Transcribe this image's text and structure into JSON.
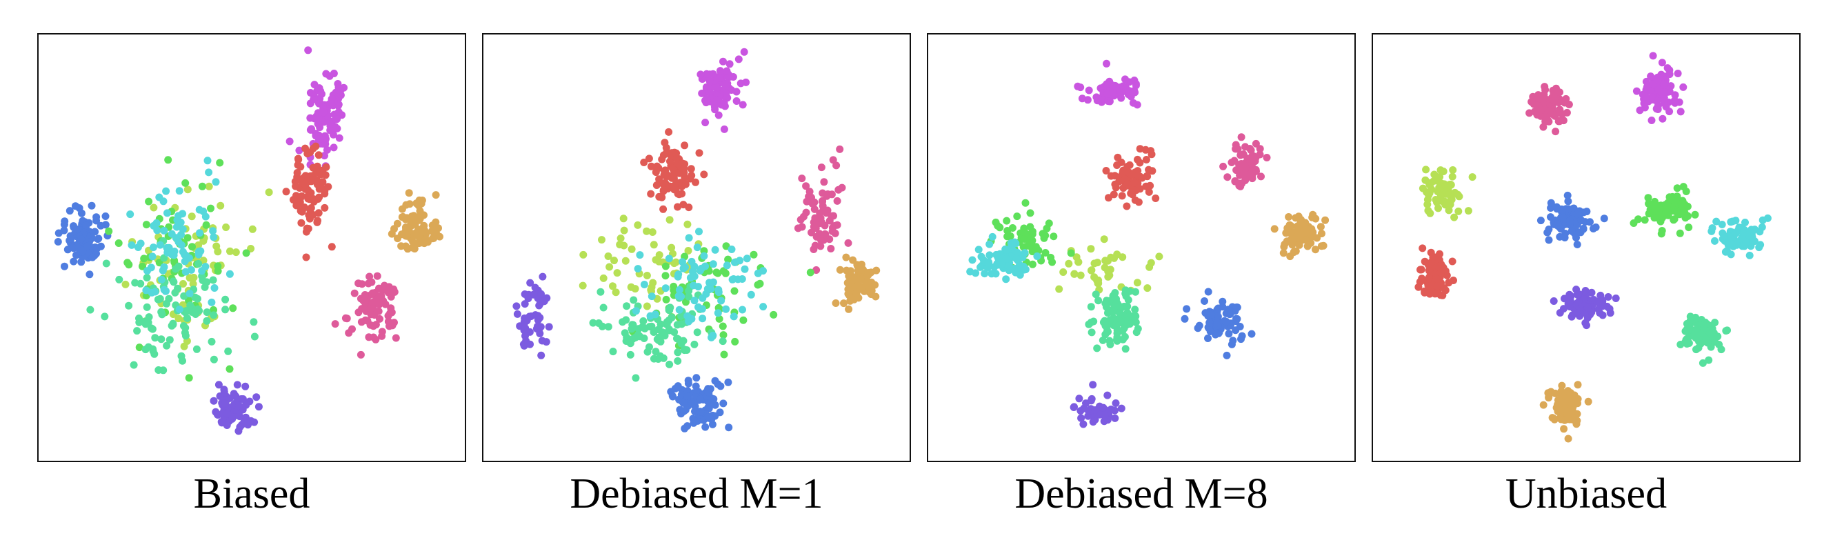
{
  "colors": [
    "#4f7de0",
    "#7c5be0",
    "#c955e0",
    "#de5a9a",
    "#e05a55",
    "#dba856",
    "#b6e055",
    "#5ee05a",
    "#56e09d",
    "#55d8db"
  ],
  "chart_data": [
    {
      "type": "scatter",
      "title": "Biased",
      "clusters": [
        {
          "color": 0,
          "center": [
            0.09,
            0.47
          ],
          "spread": [
            0.05,
            0.07
          ],
          "n": 90
        },
        {
          "color": 1,
          "center": [
            0.46,
            0.89
          ],
          "spread": [
            0.04,
            0.05
          ],
          "n": 70
        },
        {
          "color": 2,
          "center": [
            0.68,
            0.17
          ],
          "spread": [
            0.04,
            0.09
          ],
          "n": 90
        },
        {
          "color": 3,
          "center": [
            0.79,
            0.64
          ],
          "spread": [
            0.05,
            0.07
          ],
          "n": 80
        },
        {
          "color": 4,
          "center": [
            0.64,
            0.36
          ],
          "spread": [
            0.04,
            0.09
          ],
          "n": 90
        },
        {
          "color": 5,
          "center": [
            0.9,
            0.45
          ],
          "spread": [
            0.05,
            0.06
          ],
          "n": 80
        },
        {
          "color": 6,
          "center": [
            0.35,
            0.55
          ],
          "spread": [
            0.13,
            0.18
          ],
          "n": 70
        },
        {
          "color": 7,
          "center": [
            0.3,
            0.52
          ],
          "spread": [
            0.12,
            0.17
          ],
          "n": 60
        },
        {
          "color": 8,
          "center": [
            0.3,
            0.66
          ],
          "spread": [
            0.12,
            0.11
          ],
          "n": 90
        },
        {
          "color": 9,
          "center": [
            0.32,
            0.48
          ],
          "spread": [
            0.1,
            0.14
          ],
          "n": 70
        }
      ]
    },
    {
      "type": "scatter",
      "title": "Debiased M=1",
      "clusters": [
        {
          "color": 0,
          "center": [
            0.51,
            0.88
          ],
          "spread": [
            0.05,
            0.06
          ],
          "n": 90
        },
        {
          "color": 1,
          "center": [
            0.11,
            0.67
          ],
          "spread": [
            0.03,
            0.08
          ],
          "n": 50
        },
        {
          "color": 2,
          "center": [
            0.56,
            0.12
          ],
          "spread": [
            0.05,
            0.06
          ],
          "n": 80
        },
        {
          "color": 3,
          "center": [
            0.8,
            0.43
          ],
          "spread": [
            0.04,
            0.12
          ],
          "n": 70
        },
        {
          "color": 4,
          "center": [
            0.44,
            0.32
          ],
          "spread": [
            0.05,
            0.07
          ],
          "n": 90
        },
        {
          "color": 5,
          "center": [
            0.89,
            0.59
          ],
          "spread": [
            0.04,
            0.05
          ],
          "n": 70
        },
        {
          "color": 6,
          "center": [
            0.38,
            0.55
          ],
          "spread": [
            0.12,
            0.1
          ],
          "n": 50
        },
        {
          "color": 7,
          "center": [
            0.52,
            0.62
          ],
          "spread": [
            0.14,
            0.12
          ],
          "n": 60
        },
        {
          "color": 8,
          "center": [
            0.4,
            0.7
          ],
          "spread": [
            0.12,
            0.09
          ],
          "n": 90
        },
        {
          "color": 9,
          "center": [
            0.52,
            0.58
          ],
          "spread": [
            0.14,
            0.12
          ],
          "n": 70
        }
      ]
    },
    {
      "type": "scatter",
      "title": "Debiased M=8",
      "clusters": [
        {
          "color": 0,
          "center": [
            0.69,
            0.68
          ],
          "spread": [
            0.05,
            0.05
          ],
          "n": 80
        },
        {
          "color": 1,
          "center": [
            0.39,
            0.9
          ],
          "spread": [
            0.05,
            0.03
          ],
          "n": 40
        },
        {
          "color": 2,
          "center": [
            0.43,
            0.12
          ],
          "spread": [
            0.07,
            0.03
          ],
          "n": 70
        },
        {
          "color": 3,
          "center": [
            0.76,
            0.31
          ],
          "spread": [
            0.04,
            0.05
          ],
          "n": 60
        },
        {
          "color": 4,
          "center": [
            0.48,
            0.33
          ],
          "spread": [
            0.04,
            0.05
          ],
          "n": 70
        },
        {
          "color": 5,
          "center": [
            0.88,
            0.47
          ],
          "spread": [
            0.05,
            0.04
          ],
          "n": 70
        },
        {
          "color": 6,
          "center": [
            0.42,
            0.55
          ],
          "spread": [
            0.09,
            0.06
          ],
          "n": 40
        },
        {
          "color": 7,
          "center": [
            0.22,
            0.48
          ],
          "spread": [
            0.06,
            0.06
          ],
          "n": 60
        },
        {
          "color": 8,
          "center": [
            0.44,
            0.67
          ],
          "spread": [
            0.05,
            0.06
          ],
          "n": 90
        },
        {
          "color": 9,
          "center": [
            0.17,
            0.53
          ],
          "spread": [
            0.07,
            0.04
          ],
          "n": 70
        }
      ]
    },
    {
      "type": "scatter",
      "title": "Unbiased",
      "clusters": [
        {
          "color": 0,
          "center": [
            0.46,
            0.43
          ],
          "spread": [
            0.05,
            0.04
          ],
          "n": 90
        },
        {
          "color": 1,
          "center": [
            0.5,
            0.64
          ],
          "spread": [
            0.06,
            0.03
          ],
          "n": 80
        },
        {
          "color": 2,
          "center": [
            0.68,
            0.12
          ],
          "spread": [
            0.05,
            0.05
          ],
          "n": 80
        },
        {
          "color": 3,
          "center": [
            0.41,
            0.16
          ],
          "spread": [
            0.04,
            0.04
          ],
          "n": 90
        },
        {
          "color": 4,
          "center": [
            0.13,
            0.57
          ],
          "spread": [
            0.03,
            0.05
          ],
          "n": 80
        },
        {
          "color": 5,
          "center": [
            0.45,
            0.88
          ],
          "spread": [
            0.04,
            0.04
          ],
          "n": 90
        },
        {
          "color": 6,
          "center": [
            0.15,
            0.37
          ],
          "spread": [
            0.04,
            0.04
          ],
          "n": 70
        },
        {
          "color": 7,
          "center": [
            0.7,
            0.41
          ],
          "spread": [
            0.05,
            0.04
          ],
          "n": 80
        },
        {
          "color": 8,
          "center": [
            0.78,
            0.71
          ],
          "spread": [
            0.04,
            0.04
          ],
          "n": 90
        },
        {
          "color": 9,
          "center": [
            0.87,
            0.47
          ],
          "spread": [
            0.05,
            0.04
          ],
          "n": 70
        }
      ]
    }
  ]
}
